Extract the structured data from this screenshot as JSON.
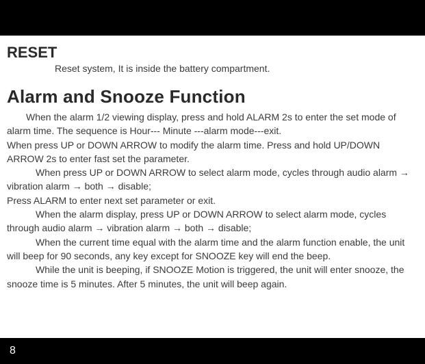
{
  "colors": {
    "bar_background": "#000000",
    "page_background": "#ffffff",
    "heading_color": "#2a2a2a",
    "body_text_color": "#3a3a3a",
    "page_number_color": "#ffffff"
  },
  "typography": {
    "font_family": "Arial, Helvetica, sans-serif",
    "reset_heading_size": 22,
    "reset_heading_weight": "bold",
    "alarm_heading_size": 26,
    "alarm_heading_weight": "bold",
    "body_size": 14,
    "line_height": 1.45
  },
  "reset": {
    "heading": "RESET",
    "text": "Reset system, It is inside the battery compartment."
  },
  "alarm": {
    "heading": "Alarm and Snooze Function",
    "p1": "When the alarm 1/2 viewing display, press and hold ALARM 2s to enter the set mode of alarm time. The sequence is Hour--- Minute ---alarm mode---exit.",
    "p2": "When press UP or DOWN ARROW to modify the alarm time. Press and hold UP/DOWN ARROW 2s to enter fast set the parameter.",
    "p3": "When press UP or DOWN ARROW to select alarm mode, cycles through audio alarm → vibration alarm → both → disable;",
    "p4": "Press ALARM to enter next set parameter or exit.",
    "p5": "When the alarm display, press UP or DOWN ARROW to select alarm mode, cycles through audio alarm → vibration alarm → both → disable;",
    "p6": "When the current time equal with the alarm time and the alarm function enable, the unit will beep for 90 seconds, any key except for SNOOZE key will end the beep.",
    "p7": "While the unit is beeping, if  SNOOZE Motion is triggered, the unit will enter snooze, the snooze time is 5 minutes. After 5 minutes, the unit will beep again."
  },
  "page_number": "8"
}
